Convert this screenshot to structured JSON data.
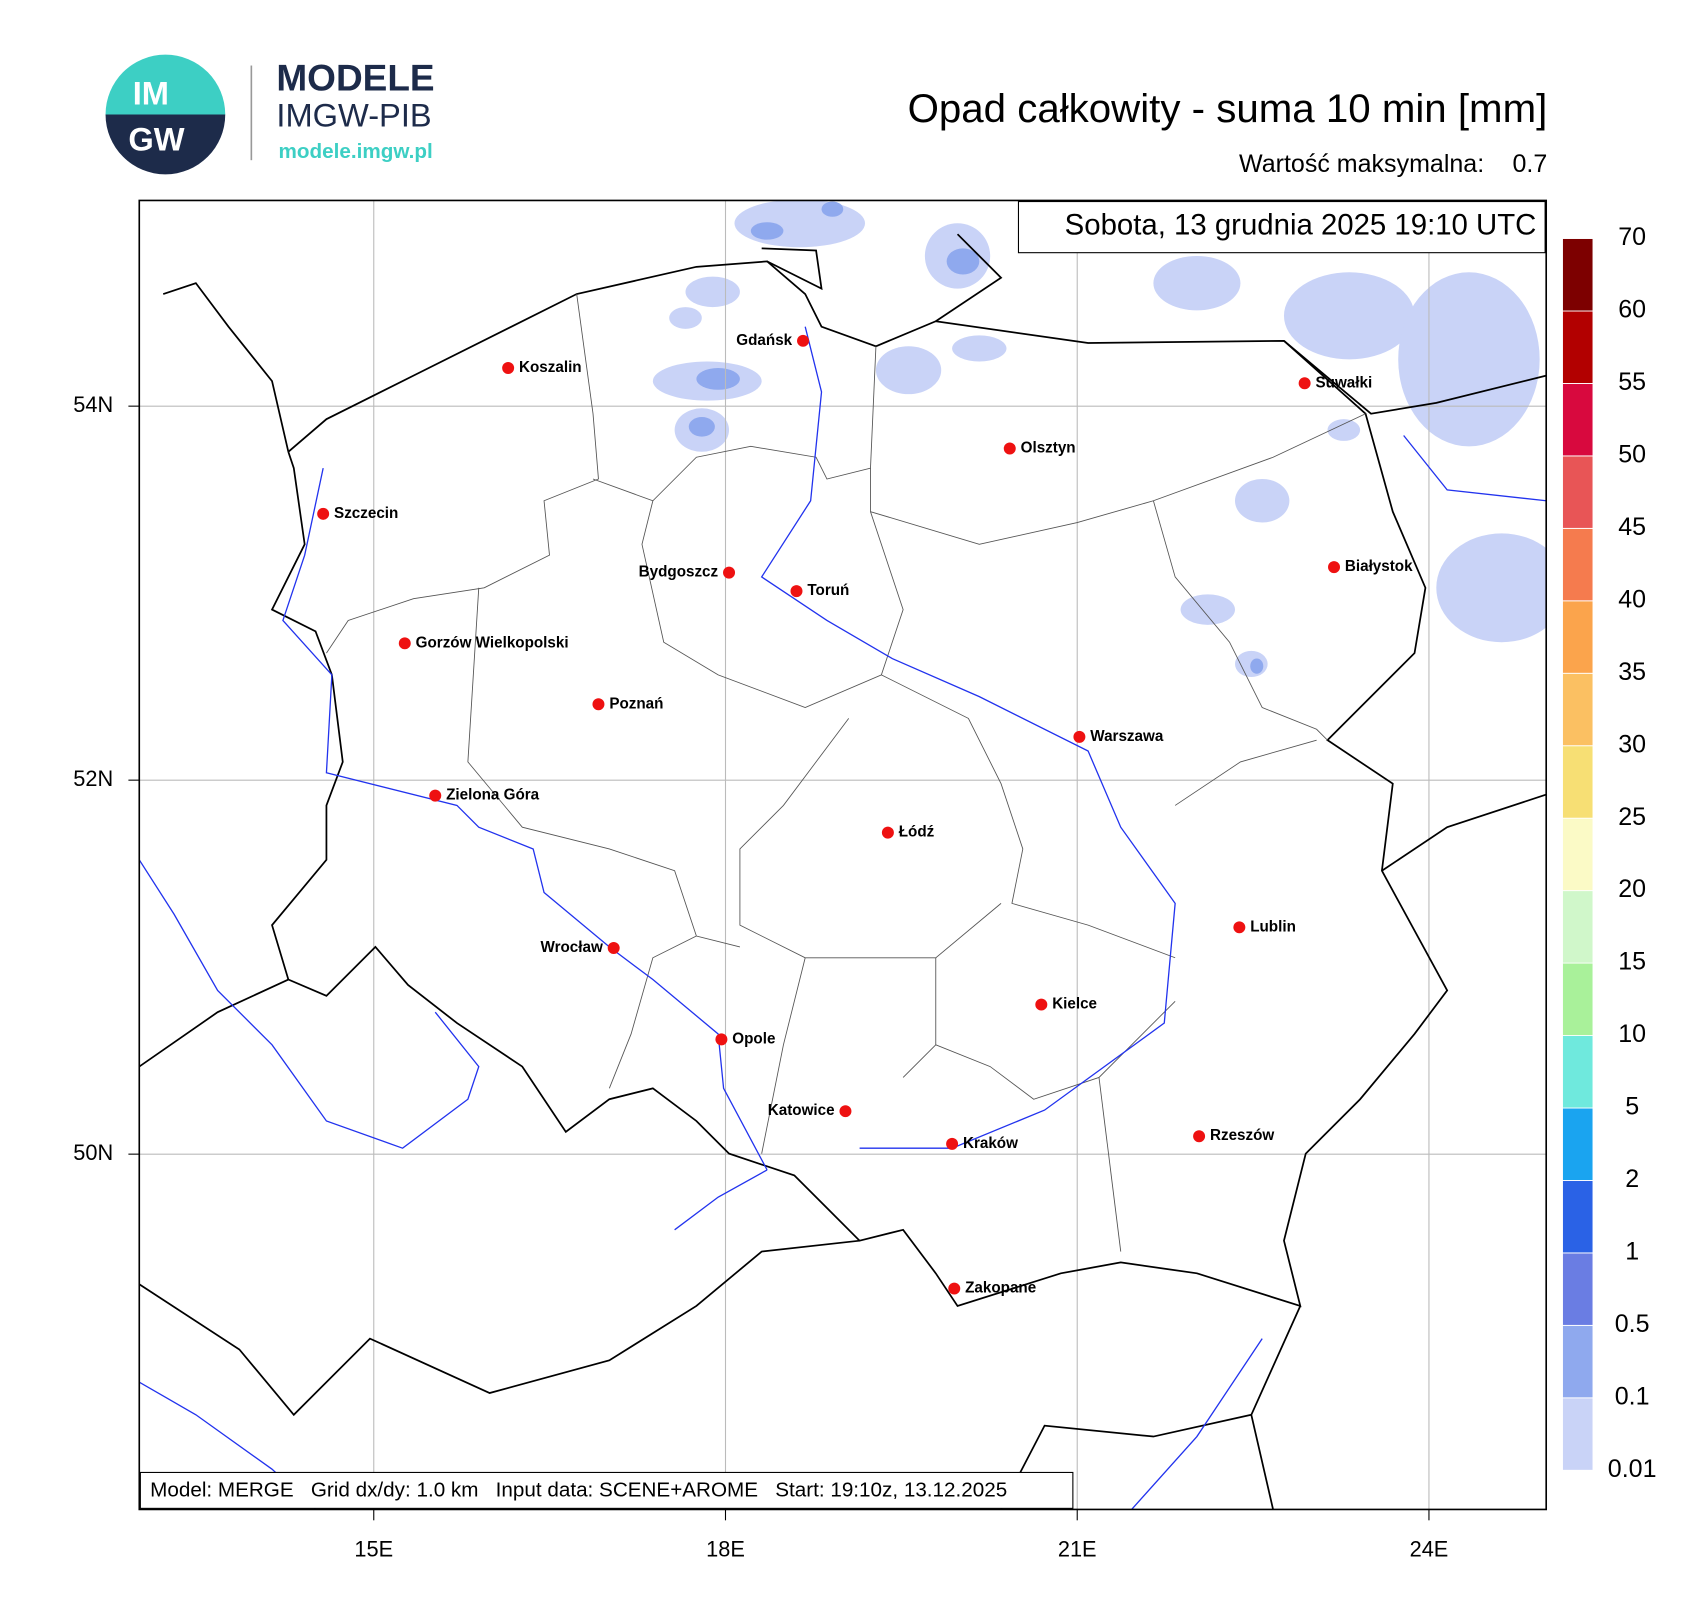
{
  "header": {
    "logo_top": "IM",
    "logo_bottom": "GW",
    "brand": "MODELE",
    "brand_sub": "IMGW-PIB",
    "url": "modele.imgw.pl"
  },
  "title": "Opad całkowity - suma 10 min [mm]",
  "max_label": "Wartość maksymalna:",
  "max_value": 0.7,
  "date": "Sobota, 13 grudnia 2025 19:10 UTC",
  "map": {
    "xlim": [
      13,
      25
    ],
    "ylim": [
      48.1,
      55.1
    ],
    "grid": true,
    "xticks": [
      {
        "value": 15,
        "label": "15E"
      },
      {
        "value": 18,
        "label": "18E"
      },
      {
        "value": 21,
        "label": "21E"
      },
      {
        "value": 24,
        "label": "24E"
      }
    ],
    "yticks": [
      {
        "value": 50,
        "label": "50N"
      },
      {
        "value": 52,
        "label": "52N"
      },
      {
        "value": 54,
        "label": "54N"
      }
    ],
    "cities": [
      "Koszalin",
      "Gdańsk",
      "Suwałki",
      "Olsztyn",
      "Szczecin",
      "Białystok",
      "Bydgoszcz",
      "Toruń",
      "Gorzów Wielkopolski",
      "Poznań",
      "Warszawa",
      "Zielona Góra",
      "Łódź",
      "Lublin",
      "Wrocław",
      "Kielce",
      "Opole",
      "Katowice",
      "Kraków",
      "Rzeszów",
      "Zakopane"
    ]
  },
  "colorbar": {
    "levels": [
      0.01,
      0.1,
      0.5,
      1,
      2,
      5,
      10,
      15,
      20,
      25,
      30,
      35,
      40,
      45,
      50,
      55,
      60,
      70
    ],
    "colors": [
      "#c9d3f7",
      "#8fa9ee",
      "#6a7de3",
      "#2a62e6",
      "#1aa4f0",
      "#6fe9dd",
      "#a9f19a",
      "#d0f7ca",
      "#fbfac6",
      "#f7df74",
      "#fbc062",
      "#fba44c",
      "#f57b4e",
      "#e85556",
      "#d8093e",
      "#b20000",
      "#7d0000"
    ]
  },
  "footer": "Model: MERGE   Grid dx/dy: 1.0 km   Input data: SCENE+AROME   Start: 19:10z, 13.12.2025"
}
